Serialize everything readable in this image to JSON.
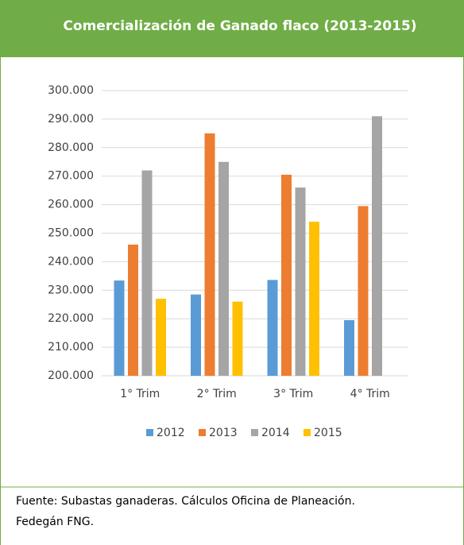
{
  "chart_data": {
    "type": "bar",
    "title": "Comercialización de Ganado flaco (2013-2015)",
    "categories": [
      "1° Trim",
      "2° Trim",
      "3° Trim",
      "4° Trim"
    ],
    "series": [
      {
        "name": "2012",
        "color": "#5b9bd5",
        "values": [
          233400,
          228500,
          233600,
          219500
        ]
      },
      {
        "name": "2013",
        "color": "#ed7d31",
        "values": [
          246000,
          285000,
          270500,
          259500
        ]
      },
      {
        "name": "2014",
        "color": "#a5a5a5",
        "values": [
          272000,
          275000,
          266000,
          291000
        ]
      },
      {
        "name": "2015",
        "color": "#ffc000",
        "values": [
          227000,
          226000,
          254000,
          null
        ]
      }
    ],
    "ylim": [
      200000,
      300000
    ],
    "yticks": [
      {
        "value": 200000,
        "label": "200.000"
      },
      {
        "value": 210000,
        "label": "210.000"
      },
      {
        "value": 220000,
        "label": "220.000"
      },
      {
        "value": 230000,
        "label": "230.000"
      },
      {
        "value": 240000,
        "label": "240.000"
      },
      {
        "value": 250000,
        "label": "250.000"
      },
      {
        "value": 260000,
        "label": "260.000"
      },
      {
        "value": 270000,
        "label": "270.000"
      },
      {
        "value": 280000,
        "label": "280.000"
      },
      {
        "value": 290000,
        "label": "290.000"
      },
      {
        "value": 300000,
        "label": "300.000"
      }
    ],
    "grid": true,
    "legend": "bottom",
    "source": "Fuente: Subastas ganaderas. Cálculos Oficina de Planeación.",
    "source_line2": "Fedegán FNG."
  }
}
